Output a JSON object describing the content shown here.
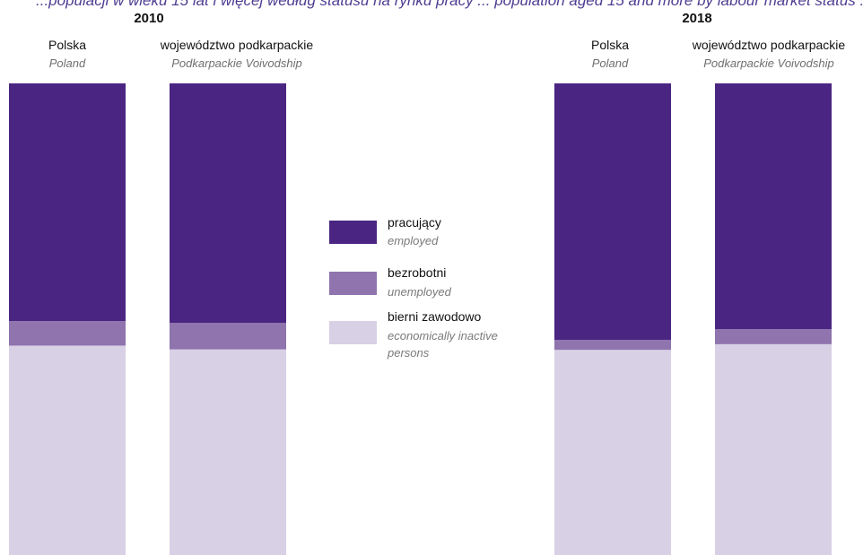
{
  "chart_title_fragment": "...populacji w wieku 15 lat i więcej według statusu na rynku pracy ... population aged 15 and more by labour market status ...",
  "colors": {
    "employed": "#4a2682",
    "unemployed": "#8f74ae",
    "inactive": "#d8d0e5",
    "title": "#4f3d91"
  },
  "legend": [
    {
      "label_pl": "pracujący",
      "label_en": "employed",
      "color_key": "employed"
    },
    {
      "label_pl": "bezrobotni",
      "label_en": "unemployed",
      "color_key": "unemployed"
    },
    {
      "label_pl": "bierni zawodowo",
      "label_en": [
        "economically inactive",
        "persons"
      ],
      "color_key": "inactive"
    }
  ],
  "chart_data": {
    "type": "bar",
    "stacked": true,
    "orientation": "vertical",
    "unit": "%",
    "ylim": [
      0,
      100
    ],
    "series_order": [
      "bierni zawodowo / economically inactive persons",
      "bezrobotni / unemployed",
      "pracujący / employed"
    ],
    "groups": [
      {
        "year": "2010",
        "bars": [
          {
            "label_pl": "Polska",
            "label_en": "Poland",
            "employed": 50.4,
            "unemployed": 5.2,
            "inactive": 44.4
          },
          {
            "label_pl": "województwo podkarpackie",
            "label_en": "Podkarpackie Voivodship",
            "employed": 50.8,
            "unemployed": 5.6,
            "inactive": 43.6
          }
        ]
      },
      {
        "year": "2018",
        "bars": [
          {
            "label_pl": "Polska",
            "label_en": "Poland",
            "employed": 54.4,
            "unemployed": 2.1,
            "inactive": 43.5
          },
          {
            "label_pl": "województwo podkarpackie",
            "label_en": "Podkarpackie Voivodship",
            "employed": 52.1,
            "unemployed": 3.2,
            "inactive": 44.7
          }
        ]
      }
    ]
  }
}
